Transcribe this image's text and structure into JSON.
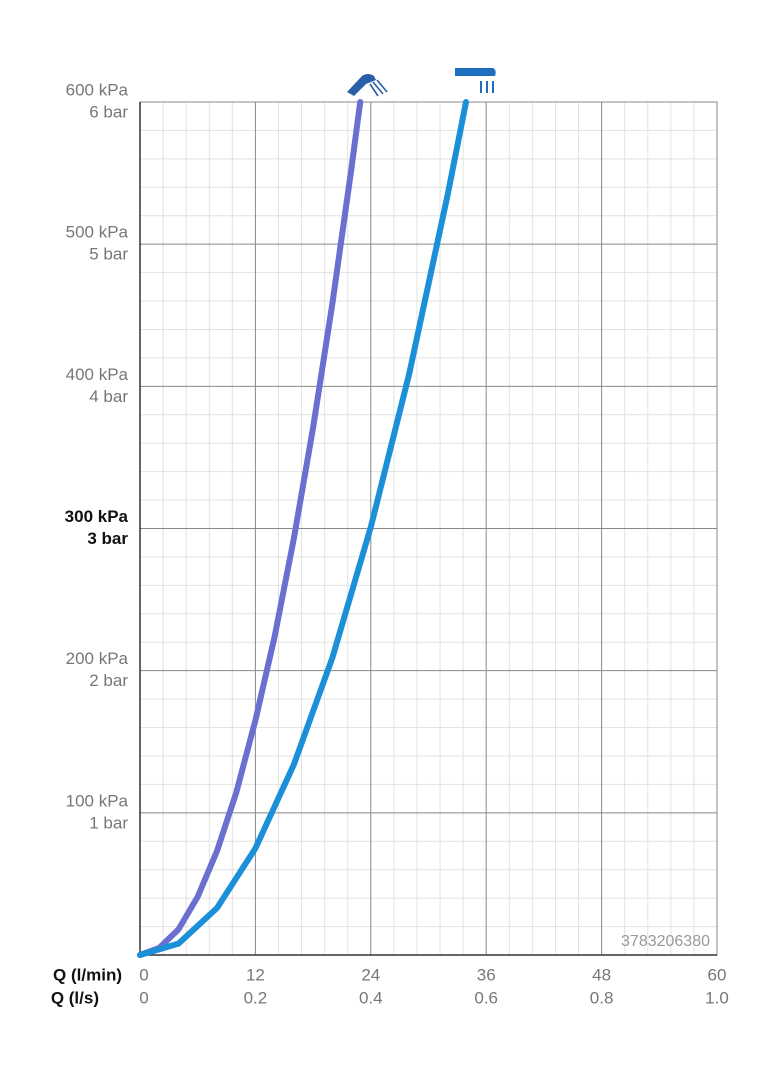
{
  "chart_data": {
    "type": "line",
    "x_label": "Q (l/min)",
    "x2_label": "Q (l/s)",
    "xlim": [
      0,
      60
    ],
    "xticks": [
      0,
      12,
      24,
      36,
      48,
      60
    ],
    "x2lim": [
      0,
      1
    ],
    "x2ticks": [
      0,
      0.2,
      0.4,
      0.6,
      0.8,
      {
        "value": 1,
        "label": "1.0"
      }
    ],
    "ylim": [
      0,
      600
    ],
    "yticks": [
      {
        "value": 100,
        "label": "100 kPa"
      },
      {
        "value": 200,
        "label": "200 kPa"
      },
      {
        "value": 300,
        "label": "300 kPa"
      },
      {
        "value": 400,
        "label": "400 kPa"
      },
      {
        "value": 500,
        "label": "500 kPa"
      },
      {
        "value": 600,
        "label": "600 kPa"
      }
    ],
    "yticks_bar": [
      {
        "value": 100,
        "label": "1 bar"
      },
      {
        "value": 200,
        "label": "2 bar"
      },
      {
        "value": 300,
        "label": "3 bar"
      },
      {
        "value": 400,
        "label": "4 bar"
      },
      {
        "value": 500,
        "label": "5 bar"
      },
      {
        "value": 600,
        "label": "6 bar"
      }
    ],
    "bold_ytick": 300,
    "grid": true,
    "watermark": "3783206380",
    "series": [
      {
        "color": "#6a6fd0",
        "x": [
          0,
          2,
          4,
          6,
          8,
          10,
          12,
          14,
          16,
          18,
          20,
          22,
          22.9
        ],
        "values": [
          0,
          5,
          18,
          41,
          73,
          114,
          165,
          224,
          293,
          371,
          458,
          554,
          600
        ]
      },
      {
        "color": "#1c8fd9",
        "x": [
          0,
          4,
          8,
          12,
          16,
          20,
          24,
          28,
          32,
          33.9
        ],
        "values": [
          0,
          8,
          33,
          75,
          134,
          209,
          301,
          409,
          535,
          600
        ]
      }
    ]
  }
}
